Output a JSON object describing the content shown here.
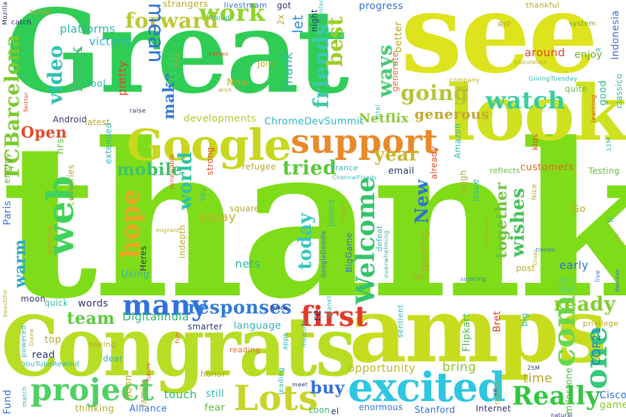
{
  "colors": {
    "green": "#3fd14a",
    "lime": "#8edc1e",
    "yellowgreen": "#c6d420",
    "yellow": "#e2e21c",
    "teal": "#2ec29a",
    "cyan": "#27c2d8",
    "blue": "#2f6fd8",
    "orange": "#ee8a26",
    "red": "#e8402b",
    "olive": "#b9b52a"
  },
  "words": [
    "thanks",
    "Great",
    "see",
    "Congrats",
    "amps",
    "look",
    "Google",
    "support",
    "excited",
    "watch",
    "Lots",
    "project",
    "many",
    "first",
    "web",
    "hope",
    "come",
    "one",
    "Really",
    "responses",
    "work",
    "forward",
    "going",
    "friends",
    "best",
    "ways",
    "Welcome",
    "tried",
    "year",
    "today",
    "mobile",
    "world",
    "team",
    "ready",
    "together",
    "wishes",
    "New",
    "buy",
    "FCBarcelona",
    "video",
    "back",
    "platforms",
    "victims",
    "make",
    "use",
    "pretty",
    "Open",
    "generous",
    "Netflix",
    "developments",
    "ChromeDevSummit",
    "warm",
    "essay",
    "nets",
    "early",
    "customers",
    "Testing",
    "around",
    "enjoy",
    "good",
    "classico",
    "Indonesia",
    "words",
    "DigitalIndia",
    "opportunity",
    "bring",
    "time",
    "COP21",
    "Cisco",
    "game",
    "Fund",
    "thinking",
    "Alliance",
    "touch",
    "fear",
    "still",
    "Stanford",
    "Internet",
    "Loon",
    "enormous",
    "Flipkart",
    "Bret",
    "milestone",
    "sporting",
    "mean",
    "let",
    "night",
    "Thank",
    "Join",
    "Now",
    "progress",
    "better",
    "generate",
    "strangers",
    "livestream",
    "Proud",
    "thankful",
    "RIP",
    "system",
    "company",
    "MG",
    "GivingTuesday",
    "quite",
    "learning",
    "cool",
    "Android",
    "latest",
    "extended",
    "hrs",
    "countries",
    "energy",
    "Paris",
    "people",
    "Using",
    "Heres",
    "indepth",
    "Yes",
    "strong",
    "refugee",
    "email",
    "France",
    "ChennaiFloods",
    "issue",
    "laugh",
    "kids",
    "reflects",
    "Amazon",
    "already",
    "Intel",
    "top",
    "read",
    "powered",
    "Diane",
    "YouTubeRewind",
    "match",
    "dear",
    "soon",
    "family",
    "seeing",
    "smarter",
    "language",
    "reading",
    "honor",
    "apps",
    "fun",
    "sentient",
    "medium",
    "re",
    "planet",
    "defeat",
    "overwhelming",
    "joined",
    "stage",
    "GoogleDoodle",
    "BigGame",
    "last",
    "post",
    "big",
    "privilege",
    "across",
    "1st",
    "trends",
    "sourcing",
    "colleagues",
    "Nice",
    "Go",
    "live",
    "devices",
    "Force",
    "moon",
    "quick",
    "beautiful",
    "square",
    "renewable",
    "Mozilla",
    "catch",
    "100M",
    "Twitter",
    "raise",
    "wish",
    "values",
    "next",
    "2x",
    "got",
    "twisted",
    "el",
    "leading",
    "meet",
    "future",
    "natural",
    "25M",
    "ve",
    "11M",
    "ll",
    "w",
    "Giver",
    "families",
    "migrant",
    "population"
  ]
}
